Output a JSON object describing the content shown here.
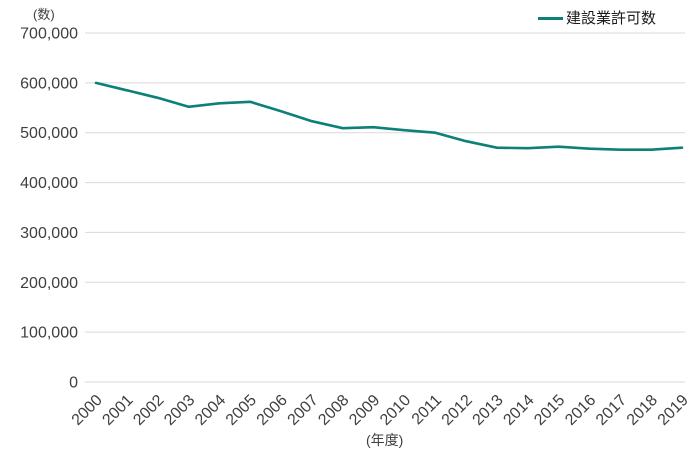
{
  "chart_data": {
    "type": "line",
    "title": "",
    "y_unit_label": "(数)",
    "x_unit_label": "(年度)",
    "categories": [
      "2000",
      "2001",
      "2002",
      "2003",
      "2004",
      "2005",
      "2006",
      "2007",
      "2008",
      "2009",
      "2010",
      "2011",
      "2012",
      "2013",
      "2014",
      "2015",
      "2016",
      "2017",
      "2018",
      "2019"
    ],
    "series": [
      {
        "name": "建設業許可数",
        "color": "#0d8078",
        "values": [
          600000,
          585000,
          570000,
          552000,
          559000,
          562000,
          543000,
          523000,
          509000,
          511000,
          505000,
          500000,
          483000,
          470000,
          469000,
          472000,
          468000,
          466000,
          466000,
          470000
        ]
      }
    ],
    "ylim": [
      0,
      700000
    ],
    "y_ticks": [
      {
        "value": 0,
        "label": "0"
      },
      {
        "value": 100000,
        "label": "100,000"
      },
      {
        "value": 200000,
        "label": "200,000"
      },
      {
        "value": 300000,
        "label": "300,000"
      },
      {
        "value": 400000,
        "label": "400,000"
      },
      {
        "value": 500000,
        "label": "500,000"
      },
      {
        "value": 600000,
        "label": "600,000"
      },
      {
        "value": 700000,
        "label": "700,000"
      }
    ],
    "grid": "horizontal-only",
    "legend_position": "top-right",
    "x_tick_rotation": -45
  },
  "style": {
    "background": "#ffffff",
    "grid_color": "#d9d9d9",
    "axis_text_color": "#3f3f3f",
    "legend_text_color": "#1a1a1a"
  }
}
